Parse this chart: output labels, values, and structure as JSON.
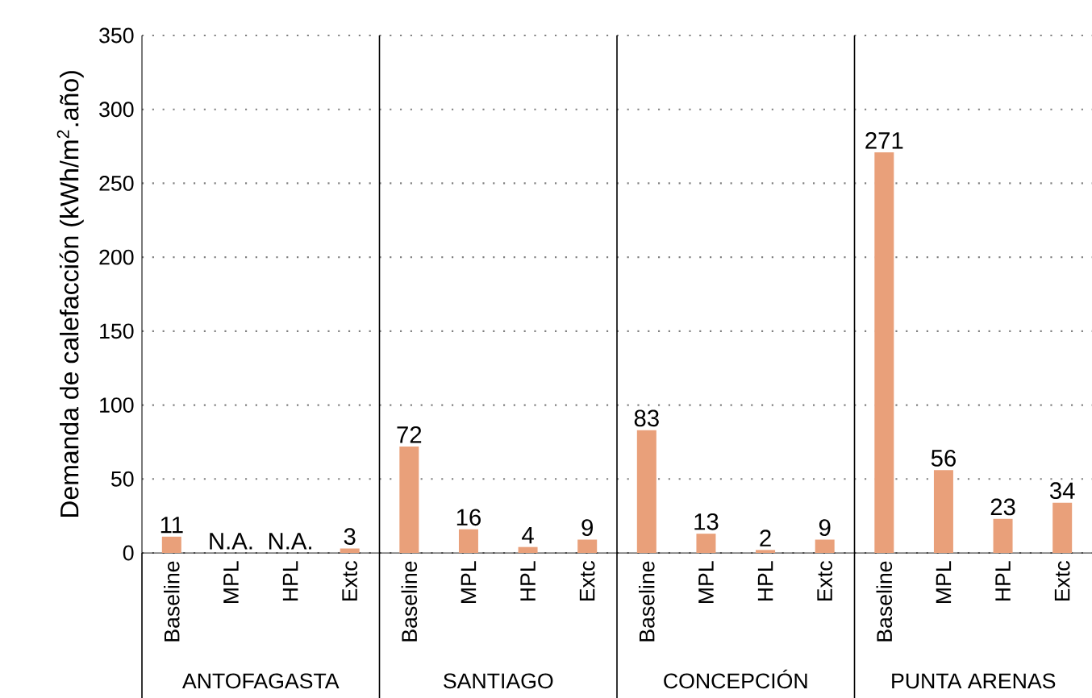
{
  "chart_data": {
    "type": "bar",
    "ylabel": "Demanda de calefacción (kWh/m$^{2}$.año)",
    "categories": [
      "Baseline",
      "MPL",
      "HPL",
      "Extc",
      "Baseline",
      "MPL",
      "HPL",
      "Extc",
      "Baseline",
      "MPL",
      "HPL",
      "Extc",
      "Baseline",
      "MPL",
      "HPL",
      "Extc"
    ],
    "values": [
      11,
      null,
      null,
      3,
      72,
      16,
      4,
      9,
      83,
      13,
      2,
      9,
      271,
      56,
      23,
      34
    ],
    "value_labels": [
      "11",
      "N.A.",
      "N.A.",
      "3",
      "72",
      "16",
      "4",
      "9",
      "83",
      "13",
      "2",
      "9",
      "271",
      "56",
      "23",
      "34"
    ],
    "color": "#e9a07a",
    "ylim": [
      0,
      350
    ],
    "yticks": [
      0,
      50,
      100,
      150,
      200,
      250,
      300,
      350
    ],
    "grid": "y",
    "annotations": [
      "ANTOFAGASTA",
      "SANTIAGO",
      "CONCEPCIÓN",
      "PUNTA ARENAS"
    ]
  }
}
